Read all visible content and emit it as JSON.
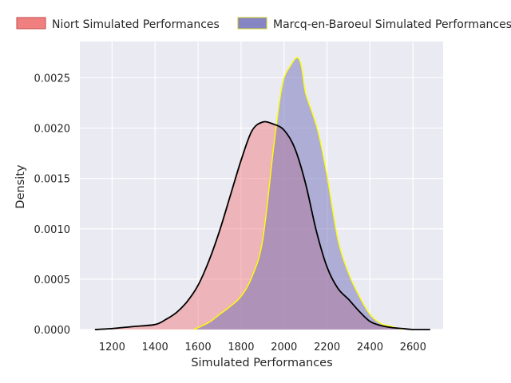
{
  "chart_data": {
    "type": "area",
    "title": "",
    "xlabel": "Simulated Performances",
    "ylabel": "Density",
    "xlim": [
      1050,
      2740
    ],
    "ylim": [
      0,
      0.00286
    ],
    "x_ticks": [
      1200,
      1400,
      1600,
      1800,
      2000,
      2200,
      2400,
      2600
    ],
    "y_ticks": [
      0.0,
      0.0005,
      0.001,
      0.0015,
      0.002,
      0.0025
    ],
    "y_tick_labels": [
      "0.0000",
      "0.0005",
      "0.0010",
      "0.0015",
      "0.0020",
      "0.0025"
    ],
    "grid": true,
    "legend_position": "top",
    "series": [
      {
        "name": "Niort Simulated Performances",
        "fill_color": "#f08080",
        "line_color": "#000000",
        "x": [
          1120,
          1200,
          1300,
          1400,
          1450,
          1500,
          1550,
          1600,
          1650,
          1700,
          1750,
          1800,
          1850,
          1900,
          1950,
          2000,
          2050,
          2100,
          2150,
          2200,
          2250,
          2300,
          2350,
          2400,
          2450,
          2500,
          2550,
          2600,
          2680
        ],
        "y": [
          0.0,
          1e-05,
          3e-05,
          5e-05,
          0.0001,
          0.00017,
          0.00028,
          0.00044,
          0.00068,
          0.00098,
          0.00133,
          0.00168,
          0.00197,
          0.00206,
          0.00204,
          0.00198,
          0.0018,
          0.00145,
          0.00098,
          0.00062,
          0.00041,
          0.0003,
          0.00018,
          8e-05,
          4e-05,
          2e-05,
          1e-05,
          0.0,
          0.0
        ]
      },
      {
        "name": "Marcq-en-Baroeul Simulated Performances",
        "fill_color": "#7070b8",
        "line_color": "#ffff00",
        "x": [
          1580,
          1650,
          1700,
          1750,
          1800,
          1850,
          1900,
          1950,
          1980,
          2000,
          2030,
          2060,
          2080,
          2100,
          2130,
          2160,
          2200,
          2250,
          2300,
          2350,
          2400,
          2450,
          2500,
          2550
        ],
        "y": [
          0.0,
          7e-05,
          0.00015,
          0.00023,
          0.00033,
          0.00052,
          0.00088,
          0.00178,
          0.00228,
          0.0025,
          0.00262,
          0.0027,
          0.00262,
          0.00235,
          0.00216,
          0.00195,
          0.00153,
          0.0009,
          0.00056,
          0.00033,
          0.00015,
          6e-05,
          3e-05,
          0.0
        ]
      }
    ]
  }
}
